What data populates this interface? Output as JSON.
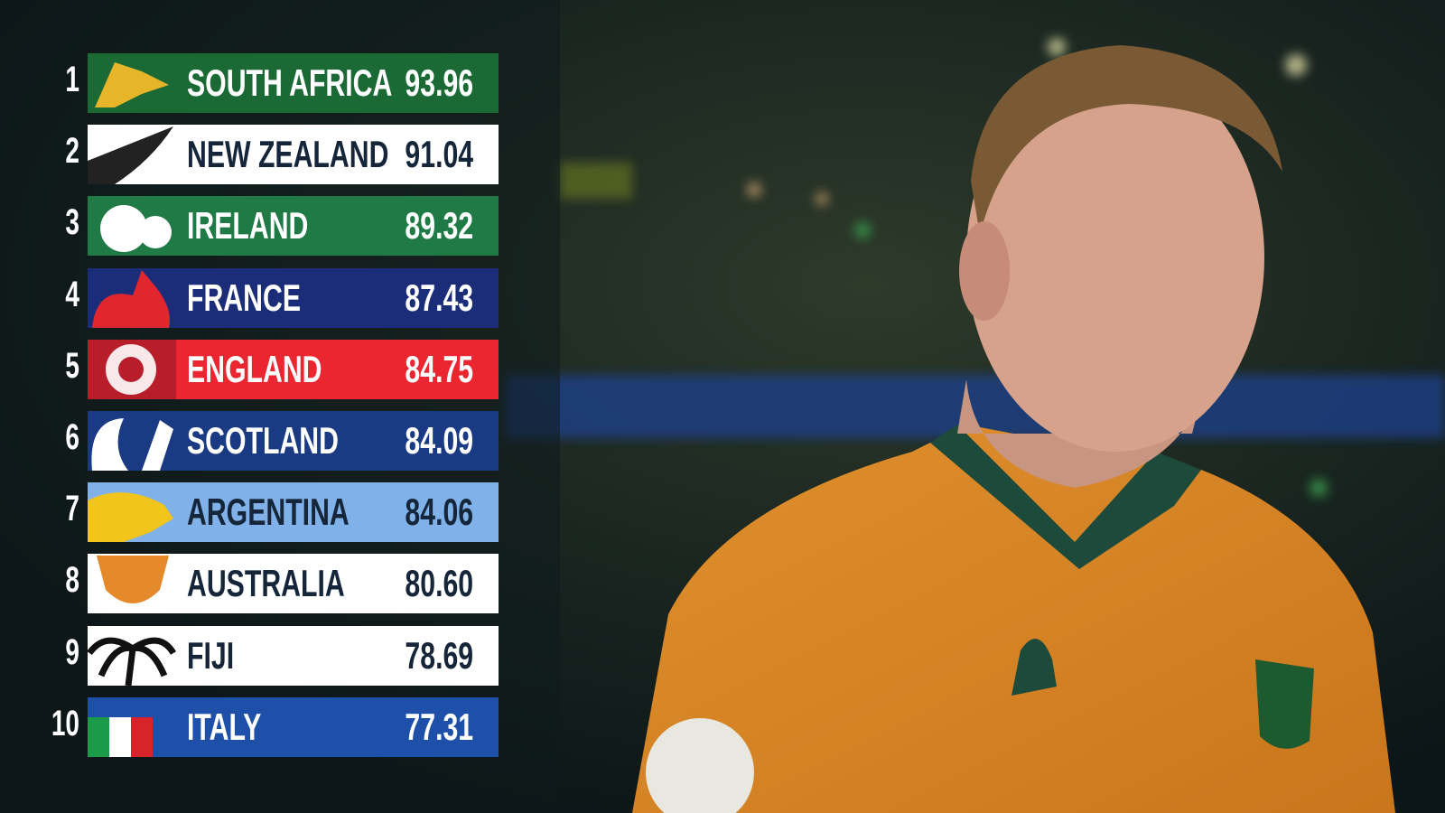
{
  "rankings": [
    {
      "rank": "1",
      "team": "SOUTH AFRICA",
      "points": "93.96",
      "bg": "#1b6a36",
      "fg": "#ffffff"
    },
    {
      "rank": "2",
      "team": "NEW ZEALAND",
      "points": "91.04",
      "bg": "#ffffff",
      "fg": "#15263a"
    },
    {
      "rank": "3",
      "team": "IRELAND",
      "points": "89.32",
      "bg": "#1f7a46",
      "fg": "#ffffff"
    },
    {
      "rank": "4",
      "team": "FRANCE",
      "points": "87.43",
      "bg": "#1b2d78",
      "fg": "#ffffff"
    },
    {
      "rank": "5",
      "team": "ENGLAND",
      "points": "84.75",
      "bg": "#ec2630",
      "fg": "#ffffff"
    },
    {
      "rank": "6",
      "team": "SCOTLAND",
      "points": "84.09",
      "bg": "#1b3a84",
      "fg": "#ffffff"
    },
    {
      "rank": "7",
      "team": "ARGENTINA",
      "points": "84.06",
      "bg": "#80b1e8",
      "fg": "#15263a"
    },
    {
      "rank": "8",
      "team": "AUSTRALIA",
      "points": "80.60",
      "bg": "#ffffff",
      "fg": "#15263a"
    },
    {
      "rank": "9",
      "team": "FIJI",
      "points": "78.69",
      "bg": "#ffffff",
      "fg": "#15263a"
    },
    {
      "rank": "10",
      "team": "ITALY",
      "points": "77.31",
      "bg": "#1e50aa",
      "fg": "#ffffff"
    }
  ]
}
